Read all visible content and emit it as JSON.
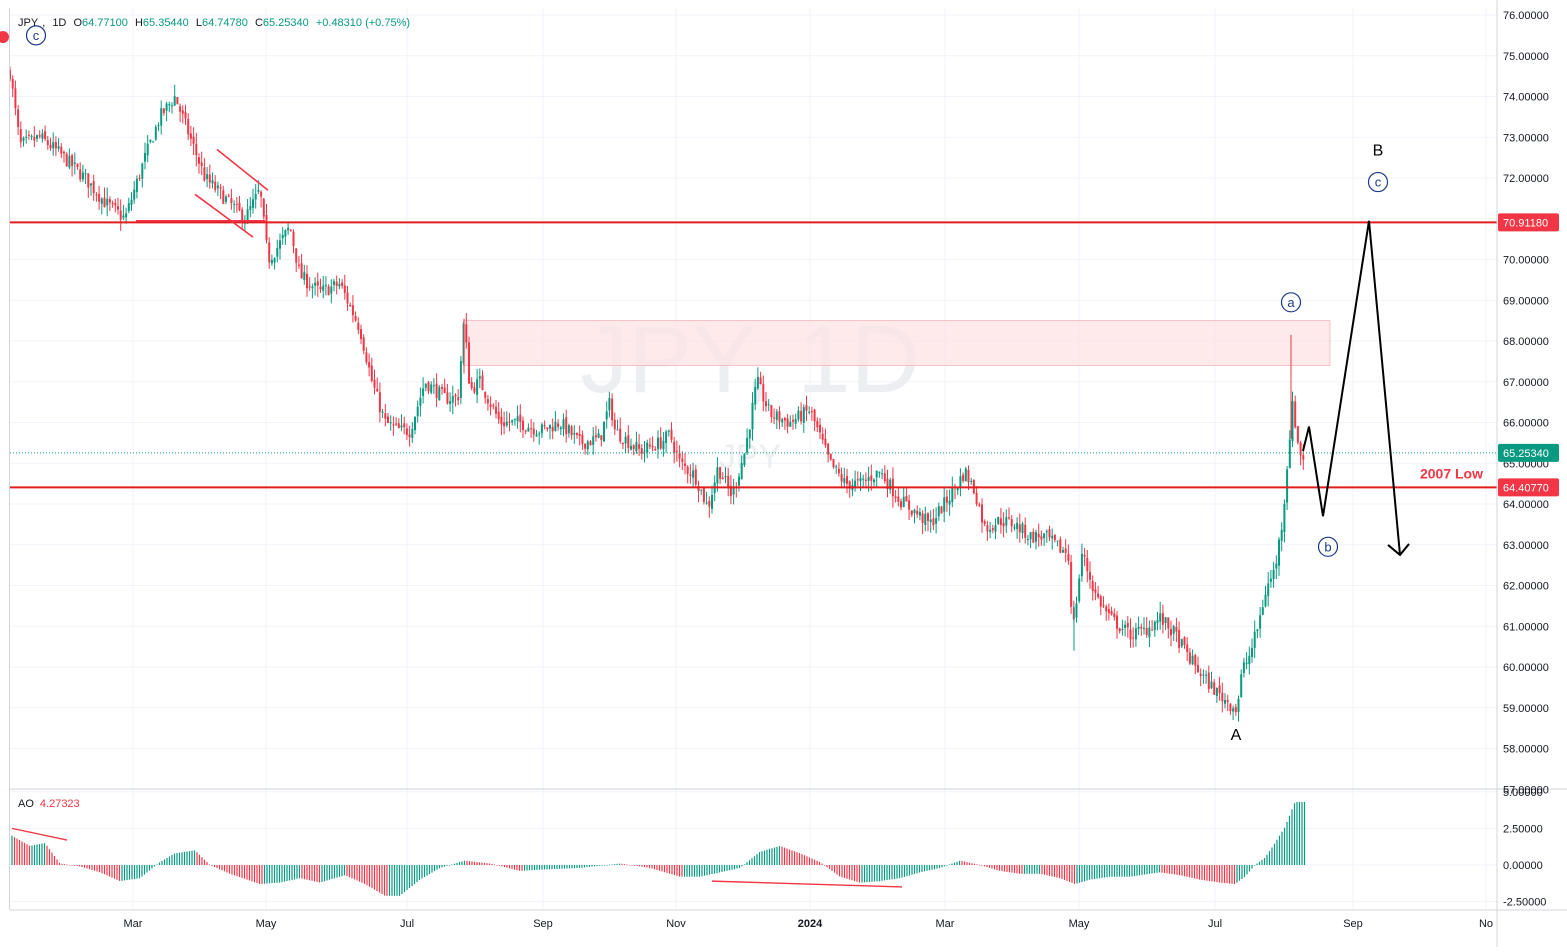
{
  "header": {
    "symbol": "JPY",
    "interval": "1D",
    "open_label": "O",
    "open": "64.77100",
    "high_label": "H",
    "high": "65.35440",
    "low_label": "L",
    "low": "64.74780",
    "close_label": "C",
    "close": "65.25340",
    "change": "+0.48310 (+0.75%)"
  },
  "watermark": {
    "main": "JPY, 1D",
    "sub": "JPY"
  },
  "indicator": {
    "name": "AO",
    "value": "4.27323"
  },
  "colors": {
    "up": "#089981",
    "down": "#f23645",
    "level_line": "#e01e1e",
    "zone_fill": "#fde3e4",
    "wave_label": "#1e3a8a",
    "grid": "#f0f3fa",
    "axis_text": "#131722"
  },
  "chart_data": {
    "type": "candlestick",
    "x_tick_labels": [
      "Mar",
      "May",
      "Jul",
      "Sep",
      "Nov",
      "2024",
      "Mar",
      "May",
      "Jul",
      "Sep",
      "No"
    ],
    "y_tick_labels": [
      "76.00000",
      "75.00000",
      "74.00000",
      "73.00000",
      "72.00000",
      "71.00000",
      "70.00000",
      "69.00000",
      "68.00000",
      "67.00000",
      "66.00000",
      "65.00000",
      "64.00000",
      "63.00000",
      "62.00000",
      "61.00000",
      "60.00000",
      "59.00000",
      "58.00000",
      "57.00000"
    ],
    "y_range": [
      57,
      76
    ],
    "price_path": [
      [
        0,
        73.0
      ],
      [
        10,
        74.6
      ],
      [
        20,
        72.8
      ],
      [
        40,
        73.0
      ],
      [
        60,
        72.6
      ],
      [
        85,
        72.0
      ],
      [
        105,
        71.4
      ],
      [
        125,
        71.0
      ],
      [
        145,
        72.5
      ],
      [
        160,
        73.5
      ],
      [
        175,
        74.0
      ],
      [
        190,
        73.0
      ],
      [
        205,
        72.0
      ],
      [
        225,
        71.5
      ],
      [
        245,
        71.0
      ],
      [
        260,
        71.7
      ],
      [
        268,
        70.0
      ],
      [
        275,
        70.2
      ],
      [
        290,
        70.8
      ],
      [
        300,
        69.6
      ],
      [
        320,
        69.2
      ],
      [
        340,
        69.4
      ],
      [
        360,
        68.3
      ],
      [
        372,
        67.0
      ],
      [
        385,
        66.0
      ],
      [
        400,
        65.8
      ],
      [
        410,
        65.8
      ],
      [
        425,
        67.0
      ],
      [
        445,
        66.6
      ],
      [
        458,
        66.6
      ],
      [
        464,
        68.5
      ],
      [
        470,
        66.8
      ],
      [
        480,
        67.0
      ],
      [
        500,
        66.0
      ],
      [
        520,
        66.0
      ],
      [
        540,
        65.8
      ],
      [
        560,
        66.0
      ],
      [
        580,
        65.5
      ],
      [
        600,
        65.6
      ],
      [
        610,
        66.5
      ],
      [
        615,
        65.8
      ],
      [
        640,
        65.3
      ],
      [
        660,
        65.5
      ],
      [
        670,
        65.7
      ],
      [
        680,
        65.0
      ],
      [
        695,
        64.7
      ],
      [
        708,
        63.9
      ],
      [
        718,
        64.9
      ],
      [
        732,
        64.2
      ],
      [
        745,
        65.3
      ],
      [
        757,
        67.0
      ],
      [
        770,
        66.2
      ],
      [
        790,
        66.0
      ],
      [
        810,
        66.3
      ],
      [
        830,
        65.0
      ],
      [
        845,
        64.5
      ],
      [
        860,
        64.5
      ],
      [
        880,
        64.8
      ],
      [
        900,
        64.1
      ],
      [
        915,
        63.8
      ],
      [
        930,
        63.5
      ],
      [
        950,
        64.2
      ],
      [
        965,
        64.8
      ],
      [
        975,
        64.3
      ],
      [
        985,
        63.4
      ],
      [
        1000,
        63.6
      ],
      [
        1015,
        63.5
      ],
      [
        1030,
        63.2
      ],
      [
        1045,
        63.2
      ],
      [
        1060,
        62.9
      ],
      [
        1068,
        62.8
      ],
      [
        1073,
        60.9
      ],
      [
        1082,
        62.8
      ],
      [
        1095,
        61.8
      ],
      [
        1110,
        61.2
      ],
      [
        1130,
        60.8
      ],
      [
        1145,
        60.9
      ],
      [
        1160,
        61.2
      ],
      [
        1175,
        60.8
      ],
      [
        1190,
        60.2
      ],
      [
        1205,
        59.7
      ],
      [
        1220,
        59.3
      ],
      [
        1237,
        58.95
      ],
      [
        1242,
        59.9
      ],
      [
        1250,
        60.3
      ],
      [
        1258,
        61.0
      ],
      [
        1266,
        61.9
      ],
      [
        1275,
        62.4
      ],
      [
        1283,
        63.7
      ],
      [
        1289,
        65.5
      ],
      [
        1293,
        66.5
      ],
      [
        1297,
        65.6
      ],
      [
        1302,
        65.1
      ],
      [
        1306,
        65.25
      ]
    ],
    "levels": [
      {
        "price": 70.9118,
        "label": "70.91180"
      },
      {
        "price": 64.4077,
        "label": "64.40770",
        "text": "2007 Low"
      }
    ],
    "last_price": {
      "price": 65.2534,
      "label": "65.25340"
    },
    "supply_zone": {
      "x_from": 464,
      "x_to": 1330,
      "price_top": 68.5,
      "price_bottom": 67.4
    },
    "wave_labels": [
      {
        "text": "c",
        "style": "circle",
        "x": 36,
        "price": 75.5
      },
      {
        "text": "a",
        "style": "circle",
        "x": 1291,
        "price": 68.95
      },
      {
        "text": "b",
        "style": "circle",
        "x": 1328,
        "price": 62.95
      },
      {
        "text": "c",
        "style": "circle",
        "x": 1378,
        "price": 71.9
      },
      {
        "text": "B",
        "style": "plain",
        "x": 1378,
        "price": 72.7
      },
      {
        "text": "A",
        "style": "plain",
        "x": 1236,
        "price": 58.35
      }
    ],
    "projection_path": [
      [
        1303,
        65.3
      ],
      [
        1309,
        65.9
      ],
      [
        1323,
        63.7
      ],
      [
        1369,
        70.95
      ],
      [
        1400,
        62.75
      ]
    ],
    "diagonals": [
      {
        "x1": 217,
        "p1": 72.7,
        "x2": 268,
        "p2": 71.7
      },
      {
        "x1": 195,
        "p1": 71.6,
        "x2": 253,
        "p2": 70.55
      },
      {
        "x1": 136,
        "p1": 70.95,
        "x2": 265,
        "p2": 70.95
      }
    ],
    "ao": {
      "name": "AO",
      "value": 4.27323,
      "y_tick_labels": [
        "5.00000",
        "2.50000",
        "0.00000",
        "-2.50000"
      ],
      "y_range": [
        -2.8,
        5.0
      ],
      "bars_path": [
        [
          12,
          2.0
        ],
        [
          30,
          1.3
        ],
        [
          45,
          1.5
        ],
        [
          60,
          0.1
        ],
        [
          80,
          -0.1
        ],
        [
          100,
          -0.5
        ],
        [
          120,
          -1.1
        ],
        [
          140,
          -0.9
        ],
        [
          160,
          0.2
        ],
        [
          175,
          0.8
        ],
        [
          195,
          1.0
        ],
        [
          210,
          0.0
        ],
        [
          230,
          -0.6
        ],
        [
          260,
          -1.3
        ],
        [
          280,
          -1.2
        ],
        [
          300,
          -0.9
        ],
        [
          320,
          -1.2
        ],
        [
          345,
          -0.7
        ],
        [
          365,
          -1.3
        ],
        [
          385,
          -2.1
        ],
        [
          400,
          -2.1
        ],
        [
          420,
          -1.0
        ],
        [
          440,
          -0.2
        ],
        [
          465,
          0.3
        ],
        [
          490,
          0.1
        ],
        [
          520,
          -0.4
        ],
        [
          545,
          -0.3
        ],
        [
          580,
          -0.2
        ],
        [
          620,
          0.1
        ],
        [
          650,
          -0.2
        ],
        [
          680,
          -0.8
        ],
        [
          700,
          -0.8
        ],
        [
          720,
          -0.5
        ],
        [
          740,
          -0.2
        ],
        [
          760,
          0.9
        ],
        [
          780,
          1.3
        ],
        [
          800,
          0.8
        ],
        [
          820,
          0.2
        ],
        [
          840,
          -0.8
        ],
        [
          860,
          -1.2
        ],
        [
          880,
          -1.1
        ],
        [
          900,
          -0.9
        ],
        [
          920,
          -0.5
        ],
        [
          940,
          -0.2
        ],
        [
          960,
          0.3
        ],
        [
          980,
          0.0
        ],
        [
          1000,
          -0.4
        ],
        [
          1020,
          -0.6
        ],
        [
          1040,
          -0.6
        ],
        [
          1060,
          -0.9
        ],
        [
          1075,
          -1.3
        ],
        [
          1090,
          -1.0
        ],
        [
          1110,
          -0.8
        ],
        [
          1130,
          -0.8
        ],
        [
          1160,
          -0.5
        ],
        [
          1180,
          -0.7
        ],
        [
          1200,
          -1.0
        ],
        [
          1220,
          -1.2
        ],
        [
          1235,
          -1.3
        ],
        [
          1245,
          -0.8
        ],
        [
          1255,
          0.0
        ],
        [
          1265,
          0.5
        ],
        [
          1275,
          1.5
        ],
        [
          1285,
          2.6
        ],
        [
          1295,
          4.3
        ],
        [
          1304,
          4.3
        ]
      ],
      "divergence_lines": [
        {
          "x1": 12,
          "v1": 2.5,
          "x2": 67,
          "v2": 1.7
        },
        {
          "x1": 712,
          "v1": -1.1,
          "x2": 902,
          "v2": -1.5
        }
      ]
    }
  }
}
